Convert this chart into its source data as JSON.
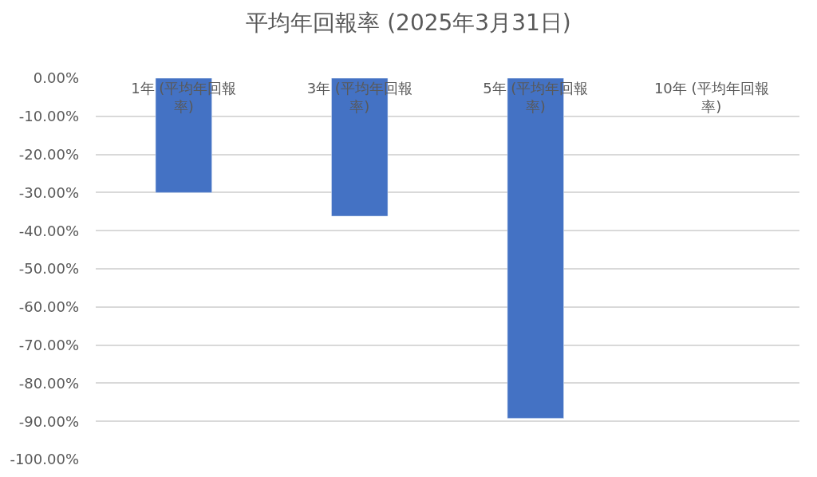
{
  "chart_data": {
    "type": "bar",
    "title": "平均年回報率 (2025年3月31日)",
    "categories": [
      "1年 (平均年回報率)",
      "3年 (平均年回報率)",
      "5年 (平均年回報率)",
      "10年 (平均年回報率)"
    ],
    "values": [
      -30,
      -36.2,
      -89.2,
      null
    ],
    "color": "#4472c4",
    "ylim": [
      -100,
      0
    ],
    "yticks": [
      {
        "value": 0,
        "label": "0.00%"
      },
      {
        "value": -10,
        "label": "-10.00%"
      },
      {
        "value": -20,
        "label": "-20.00%"
      },
      {
        "value": -30,
        "label": "-30.00%"
      },
      {
        "value": -40,
        "label": "-40.00%"
      },
      {
        "value": -50,
        "label": "-50.00%"
      },
      {
        "value": -60,
        "label": "-60.00%"
      },
      {
        "value": -70,
        "label": "-70.00%"
      },
      {
        "value": -80,
        "label": "-80.00%"
      },
      {
        "value": -90,
        "label": "-90.00%"
      },
      {
        "value": -100,
        "label": "-100.00%"
      }
    ],
    "grid": "y",
    "legend": false
  }
}
